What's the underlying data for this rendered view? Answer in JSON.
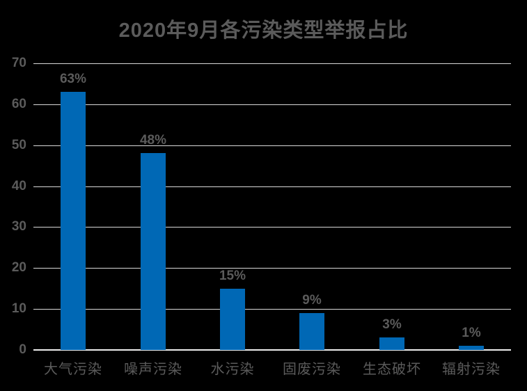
{
  "page": {
    "background": "#000000"
  },
  "chart_data": {
    "type": "bar",
    "title": "2020年9月各污染类型举报占比",
    "categories": [
      "大气污染",
      "噪声污染",
      "水污染",
      "固废污染",
      "生态破坏",
      "辐射污染"
    ],
    "values": [
      63,
      48,
      15,
      9,
      3,
      1
    ],
    "data_labels": [
      "63%",
      "48%",
      "15%",
      "9%",
      "3%",
      "1%"
    ],
    "xlabel": "",
    "ylabel": "",
    "ylim": [
      0,
      70
    ],
    "y_ticks": [
      70,
      60,
      50,
      40,
      30,
      20,
      10,
      0
    ],
    "grid": "horizontal",
    "legend": "none",
    "colors": {
      "bar": "#0068b5",
      "gridline": "#d9d9d9",
      "axis_line": "#efefef",
      "text": "#5b5b5b",
      "background": "#000000"
    }
  }
}
